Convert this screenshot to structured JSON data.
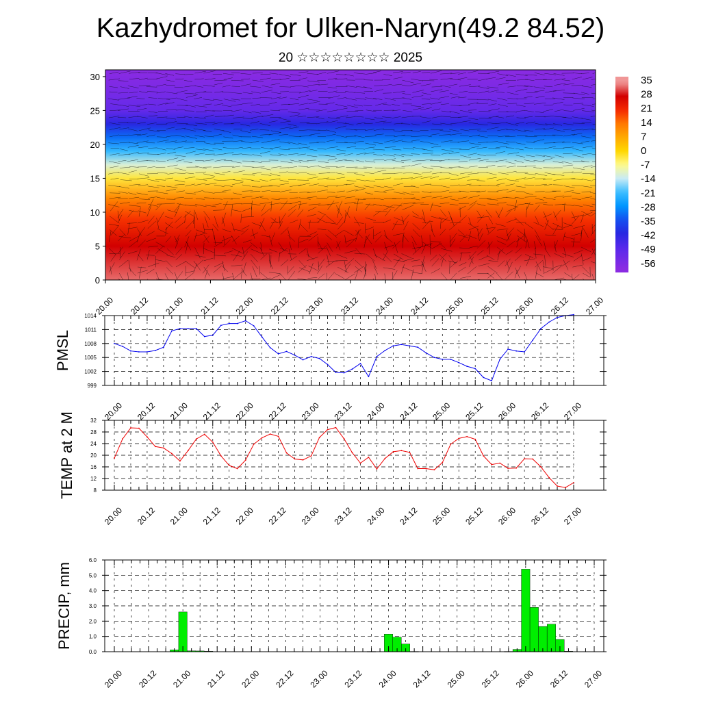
{
  "header": {
    "title": "Kazhydromet for Ulken-Naryn(49.2 84.52)",
    "subtitle": "20 ☆☆☆☆☆☆☆☆ 2025"
  },
  "chart_data": [
    {
      "type": "heatmap",
      "name": "cross-section",
      "x_tick_labels": [
        "20.00",
        "20.12",
        "21.00",
        "21.12",
        "22.00",
        "22.12",
        "23.00",
        "23.12",
        "24.00",
        "24.12",
        "25.00",
        "25.12",
        "26.00",
        "26.12",
        "27.00"
      ],
      "y_tick_labels": [
        "0",
        "5",
        "10",
        "15",
        "20",
        "25",
        "30"
      ],
      "ylim": [
        0,
        31
      ],
      "colorbar_labels": [
        "35",
        "28",
        "21",
        "14",
        "7",
        "0",
        "-7",
        "-14",
        "-21",
        "-28",
        "-35",
        "-42",
        "-49",
        "-56"
      ],
      "temperature_profile": [
        {
          "z": 0,
          "t": 33
        },
        {
          "z": 5,
          "t": 28
        },
        {
          "z": 9,
          "t": 20
        },
        {
          "z": 12,
          "t": 12
        },
        {
          "z": 15,
          "t": -3
        },
        {
          "z": 17,
          "t": -12
        },
        {
          "z": 19,
          "t": -22
        },
        {
          "z": 21,
          "t": -32
        },
        {
          "z": 23,
          "t": -42
        },
        {
          "z": 25,
          "t": -52
        },
        {
          "z": 27,
          "t": -55
        },
        {
          "z": 29,
          "t": -58
        },
        {
          "z": 31,
          "t": -60
        }
      ],
      "overlay": "wind barbs",
      "colors": {
        "hot": "#e00000",
        "warm": "#ff8c00",
        "neutral": "#ffff66",
        "cool": "#40b0ff",
        "cold": "#3030e0",
        "coldest": "#7a20e0"
      }
    },
    {
      "type": "line",
      "name": "pmsl",
      "ylabel": "PMSL",
      "ylim": [
        999,
        1014
      ],
      "y_ticks": [
        "999",
        "1002",
        "1005",
        "1008",
        "1011",
        "1014"
      ],
      "x_tick_labels": [
        "20.00",
        "20.12",
        "21.00",
        "21.12",
        "22.00",
        "22.12",
        "23.00",
        "23.12",
        "24.00",
        "24.12",
        "25.00",
        "25.12",
        "26.00",
        "26.12",
        "27.00"
      ],
      "x": [
        0,
        3,
        6,
        9,
        12,
        15,
        18,
        21,
        24,
        27,
        30,
        33,
        36,
        39,
        42,
        45,
        48,
        51,
        54,
        57,
        60,
        63,
        66,
        69,
        72,
        75,
        78,
        81,
        84,
        87,
        90,
        93,
        96,
        99,
        102,
        105,
        108,
        111,
        114,
        117,
        120,
        123,
        126,
        129,
        132,
        135,
        138,
        141,
        144,
        147,
        150,
        153,
        156,
        159,
        162,
        165,
        168
      ],
      "values": [
        1008,
        1007.4,
        1006.4,
        1006.2,
        1006.2,
        1006.5,
        1007.2,
        1010.7,
        1011.2,
        1011.2,
        1011.2,
        1009.5,
        1009.8,
        1011.9,
        1012.3,
        1012.3,
        1012.9,
        1011.8,
        1009.4,
        1007.1,
        1005.8,
        1006.3,
        1005.5,
        1004.5,
        1005.2,
        1004.8,
        1003.5,
        1001.8,
        1001.7,
        1002.5,
        1003.7,
        1000.9,
        1005.2,
        1006.5,
        1007.5,
        1007.8,
        1007.5,
        1007.2,
        1006,
        1005,
        1004.6,
        1004.6,
        1003.9,
        1003.1,
        1002.6,
        1000.7,
        1000,
        1004.6,
        1006.8,
        1006.4,
        1006.2,
        1008.7,
        1011.2,
        1012.6,
        1013.6,
        1014,
        1014.2
      ],
      "color": "#0000ee"
    },
    {
      "type": "line",
      "name": "temp2m",
      "ylabel": "TEMP at 2 M",
      "ylim": [
        8,
        32
      ],
      "y_ticks": [
        "8",
        "12",
        "16",
        "20",
        "24",
        "28",
        "32"
      ],
      "x_tick_labels": [
        "20.00",
        "20.12",
        "21.00",
        "21.12",
        "22.00",
        "22.12",
        "23.00",
        "23.12",
        "24.00",
        "24.12",
        "25.00",
        "25.12",
        "26.00",
        "26.12",
        "27.00"
      ],
      "x": [
        0,
        3,
        6,
        9,
        12,
        15,
        18,
        21,
        24,
        27,
        30,
        33,
        36,
        39,
        42,
        45,
        48,
        51,
        54,
        57,
        60,
        63,
        66,
        69,
        72,
        75,
        78,
        81,
        84,
        87,
        90,
        93,
        96,
        99,
        102,
        105,
        108,
        111,
        114,
        117,
        120,
        123,
        126,
        129,
        132,
        135,
        138,
        141,
        144,
        147,
        150,
        153,
        156,
        159,
        162,
        165,
        168
      ],
      "values": [
        19,
        25.6,
        29.4,
        29.3,
        26.3,
        23,
        22.5,
        20.6,
        18,
        21.6,
        25.6,
        27.2,
        24.5,
        19.8,
        16.5,
        15.4,
        18.3,
        23.8,
        26,
        27.3,
        26.5,
        20.8,
        18.7,
        18.4,
        19.8,
        26.1,
        28.8,
        29.5,
        25.7,
        20.9,
        17.3,
        19.3,
        15.3,
        18.9,
        21.2,
        21.6,
        21,
        15.4,
        15.4,
        15,
        17.5,
        23.8,
        25.8,
        26.4,
        25.5,
        19.8,
        16.8,
        17.3,
        15.5,
        15.6,
        18.8,
        18.7,
        16,
        12.3,
        9.4,
        8.9,
        10.6
      ],
      "color": "#ee0000"
    },
    {
      "type": "bar",
      "name": "precip",
      "ylabel": "PRECIP, mm",
      "ylim": [
        0,
        6
      ],
      "y_ticks": [
        "0.0",
        "1.0",
        "2.0",
        "3.0",
        "4.0",
        "5.0",
        "6.0"
      ],
      "x_tick_labels": [
        "20.00",
        "20.12",
        "21.00",
        "21.12",
        "22.00",
        "22.12",
        "23.00",
        "23.12",
        "24.00",
        "24.12",
        "25.00",
        "25.12",
        "26.00",
        "26.12",
        "27.00"
      ],
      "x": [
        21,
        24,
        27,
        30,
        33,
        90,
        96,
        99,
        102,
        105,
        138,
        141,
        144,
        147,
        150,
        153,
        156,
        159
      ],
      "values": [
        0.12,
        2.6,
        0.06,
        0.05,
        0.03,
        0.02,
        1.15,
        0.95,
        0.5,
        0.02,
        0.02,
        0.15,
        5.4,
        2.9,
        1.65,
        1.8,
        0.8,
        0.03
      ],
      "color": "#00ee00"
    }
  ]
}
